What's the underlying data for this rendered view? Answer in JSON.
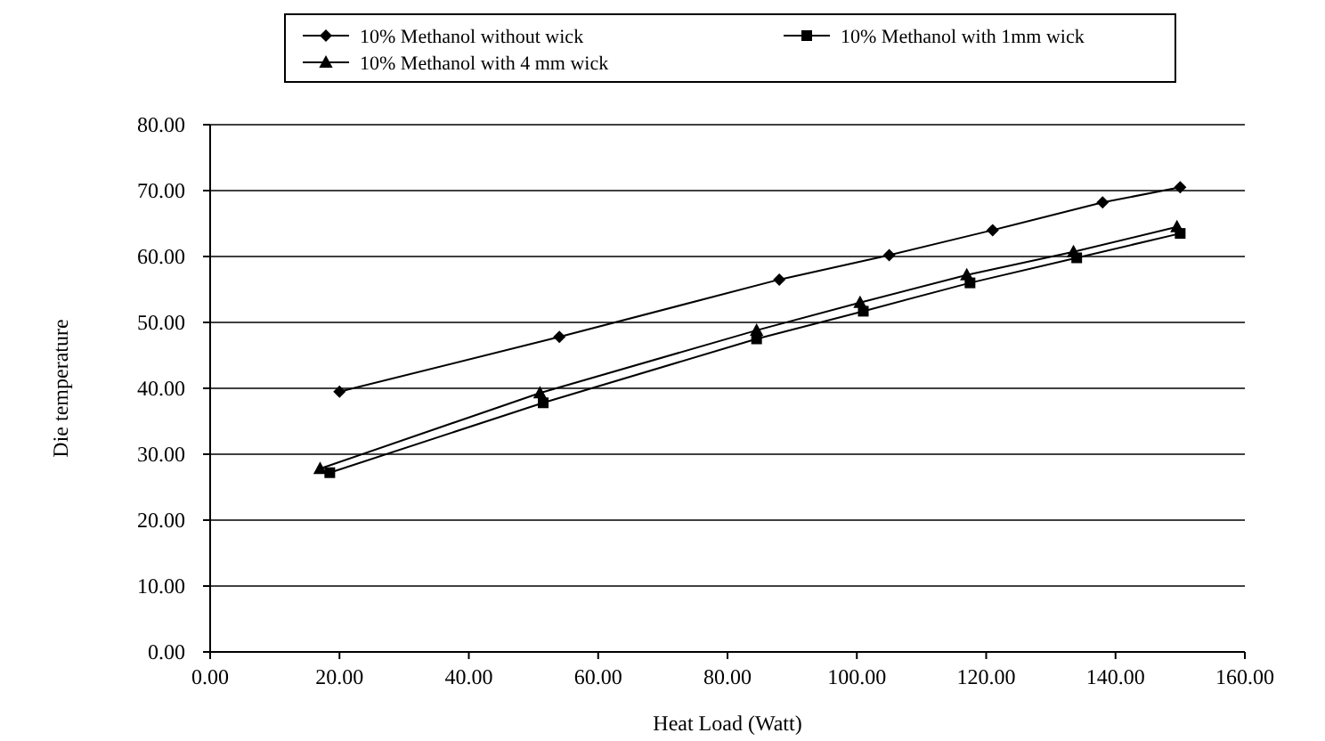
{
  "chart_data": {
    "type": "line",
    "xlabel": "Heat Load (Watt)",
    "ylabel": "Die temperature",
    "xlim": [
      0,
      160
    ],
    "ylim": [
      0,
      80
    ],
    "xticks": [
      {
        "value": 0,
        "label": "0.00"
      },
      {
        "value": 20,
        "label": "20.00"
      },
      {
        "value": 40,
        "label": "40.00"
      },
      {
        "value": 60,
        "label": "60.00"
      },
      {
        "value": 80,
        "label": "80.00"
      },
      {
        "value": 100,
        "label": "100.00"
      },
      {
        "value": 120,
        "label": "120.00"
      },
      {
        "value": 140,
        "label": "140.00"
      },
      {
        "value": 160,
        "label": "160.00"
      }
    ],
    "yticks": [
      {
        "value": 0,
        "label": "0.00"
      },
      {
        "value": 10,
        "label": "10.00"
      },
      {
        "value": 20,
        "label": "20.00"
      },
      {
        "value": 30,
        "label": "30.00"
      },
      {
        "value": 40,
        "label": "40.00"
      },
      {
        "value": 50,
        "label": "50.00"
      },
      {
        "value": 60,
        "label": "60.00"
      },
      {
        "value": 70,
        "label": "70.00"
      },
      {
        "value": 80,
        "label": "80.00"
      }
    ],
    "grid": "y",
    "legend": "top",
    "series": [
      {
        "name": "10% Methanol without wick",
        "color": "#000000",
        "marker": "diamond",
        "x": [
          20,
          54,
          88,
          105,
          121,
          138,
          150
        ],
        "values": [
          39.5,
          47.8,
          56.5,
          60.2,
          64,
          68.2,
          70.5
        ]
      },
      {
        "name": "10% Methanol with 1mm wick",
        "color": "#000000",
        "marker": "square",
        "x": [
          18.5,
          51.5,
          84.5,
          101,
          117.5,
          134,
          150
        ],
        "values": [
          27.2,
          37.8,
          47.5,
          51.7,
          56,
          59.8,
          63.5
        ]
      },
      {
        "name": "10% Methanol with 4 mm wick",
        "color": "#000000",
        "marker": "triangle",
        "x": [
          17,
          51,
          84.5,
          100.5,
          117,
          133.5,
          149.5
        ],
        "values": [
          27.8,
          39.3,
          48.8,
          53,
          57.2,
          60.7,
          64.5
        ]
      }
    ]
  }
}
